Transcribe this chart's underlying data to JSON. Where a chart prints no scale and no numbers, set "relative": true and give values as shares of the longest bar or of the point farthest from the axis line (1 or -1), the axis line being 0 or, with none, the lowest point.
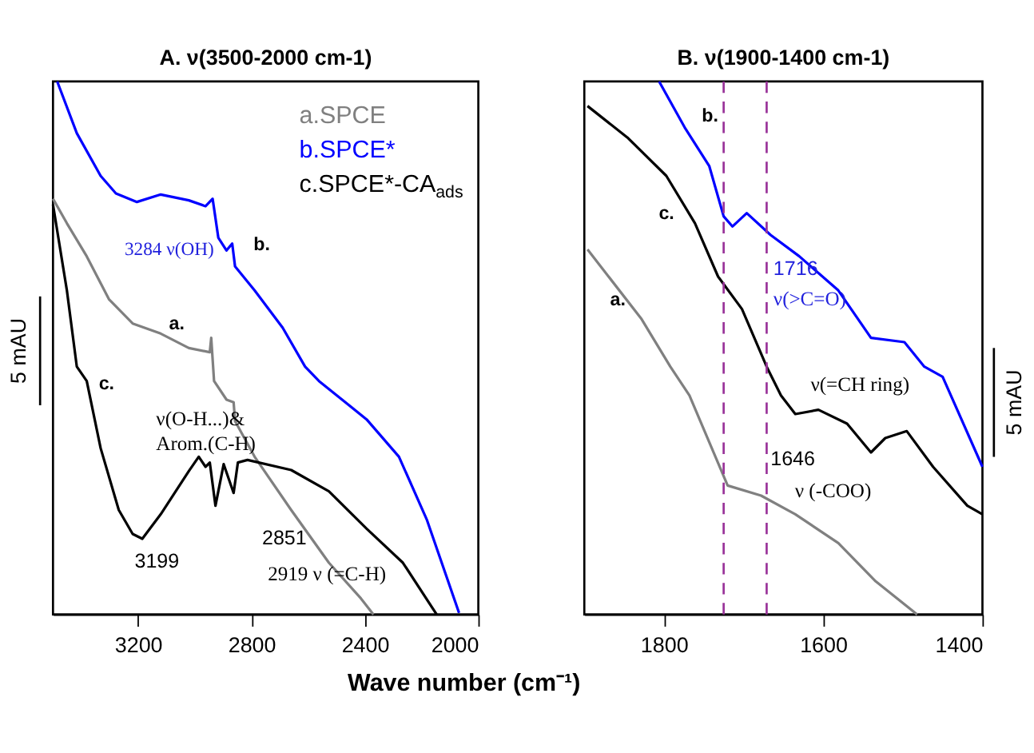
{
  "chart_data": [
    {
      "type": "line",
      "title": "A. ν(3500-2000 cm-1)",
      "xlabel": "Wave number (cm⁻¹)",
      "relative": true,
      "legend": "top right",
      "xlim": [
        3500,
        2000
      ],
      "xticks": [
        3200,
        2800,
        2400,
        2000
      ],
      "series": [
        {
          "name": "a.SPCE",
          "color": "#808080",
          "x": [
            3500,
            3451,
            3381,
            3302,
            3219,
            3120,
            3021,
            2947,
            2942,
            2932,
            2888,
            2863,
            2858,
            2789,
            2660,
            2527,
            2414,
            2370
          ],
          "values": [
            0.78,
            0.734,
            0.672,
            0.591,
            0.546,
            0.527,
            0.5,
            0.492,
            0.519,
            0.438,
            0.403,
            0.398,
            0.363,
            0.296,
            0.196,
            0.097,
            0.03,
            0.0
          ]
        },
        {
          "name": "b.SPCE*",
          "color": "#0000ff",
          "x": [
            3485,
            3416,
            3332,
            3278,
            3204,
            3120,
            3021,
            2962,
            2937,
            2917,
            2888,
            2868,
            2858,
            2789,
            2690,
            2611,
            2562,
            2394,
            2280,
            2181,
            2068
          ],
          "values": [
            1.0,
            0.903,
            0.823,
            0.79,
            0.774,
            0.788,
            0.777,
            0.766,
            0.78,
            0.707,
            0.683,
            0.696,
            0.653,
            0.608,
            0.538,
            0.465,
            0.438,
            0.366,
            0.296,
            0.177,
            0.003
          ]
        },
        {
          "name": "c.SPCE*-CA$_{ads}$",
          "color": "#000000",
          "x": [
            3500,
            3451,
            3416,
            3381,
            3332,
            3268,
            3219,
            3185,
            3120,
            3021,
            2986,
            2962,
            2947,
            2927,
            2898,
            2863,
            2848,
            2814,
            2660,
            2527,
            2394,
            2266,
            2147
          ],
          "values": [
            0.769,
            0.608,
            0.465,
            0.438,
            0.312,
            0.196,
            0.151,
            0.142,
            0.188,
            0.269,
            0.296,
            0.277,
            0.285,
            0.204,
            0.282,
            0.228,
            0.285,
            0.29,
            0.271,
            0.231,
            0.161,
            0.097,
            0.0
          ]
        }
      ],
      "annotations": [
        "3284 ν(OH)",
        "b.",
        "a.",
        "c.",
        "ν(O-H...)&\nArom.(C-H)",
        "3199",
        "2851",
        "2919 ν (=C-H)",
        "5 mAU"
      ]
    },
    {
      "type": "line",
      "title": "B. ν(1900-1400 cm-1)",
      "relative": true,
      "xlim": [
        1900,
        1400
      ],
      "xticks": [
        1800,
        1600,
        1400
      ],
      "series": [
        {
          "color": "#808080",
          "x": [
            1896,
            1828,
            1792,
            1768,
            1720,
            1678,
            1635,
            1581,
            1534,
            1482
          ],
          "values": [
            0.685,
            0.554,
            0.465,
            0.411,
            0.242,
            0.223,
            0.188,
            0.134,
            0.062,
            0.0
          ]
        },
        {
          "color": "#0000ff",
          "x": [
            1806,
            1774,
            1743,
            1725,
            1714,
            1696,
            1666,
            1630,
            1581,
            1540,
            1498,
            1473,
            1450,
            1400
          ],
          "values": [
            1.0,
            0.914,
            0.841,
            0.747,
            0.728,
            0.753,
            0.712,
            0.672,
            0.608,
            0.519,
            0.511,
            0.465,
            0.446,
            0.277
          ]
        },
        {
          "color": "#000000",
          "x": [
            1896,
            1846,
            1797,
            1761,
            1732,
            1702,
            1671,
            1653,
            1635,
            1606,
            1570,
            1540,
            1522,
            1495,
            1462,
            1419,
            1400
          ],
          "values": [
            0.954,
            0.895,
            0.823,
            0.734,
            0.634,
            0.573,
            0.465,
            0.411,
            0.376,
            0.384,
            0.358,
            0.304,
            0.331,
            0.344,
            0.277,
            0.204,
            0.188
          ]
        }
      ],
      "ref_lines": [
        {
          "axis": "x",
          "value": 1725,
          "color": "#993399",
          "line_style": "dashed"
        },
        {
          "axis": "x",
          "value": 1671,
          "color": "#993399",
          "line_style": "dashed"
        }
      ],
      "annotations": [
        "b.",
        "c.",
        "a.",
        "1716",
        "ν(>C=O)",
        "ν(=CH ring)",
        "1646",
        "ν (-COO)",
        "5 mAU"
      ]
    }
  ]
}
